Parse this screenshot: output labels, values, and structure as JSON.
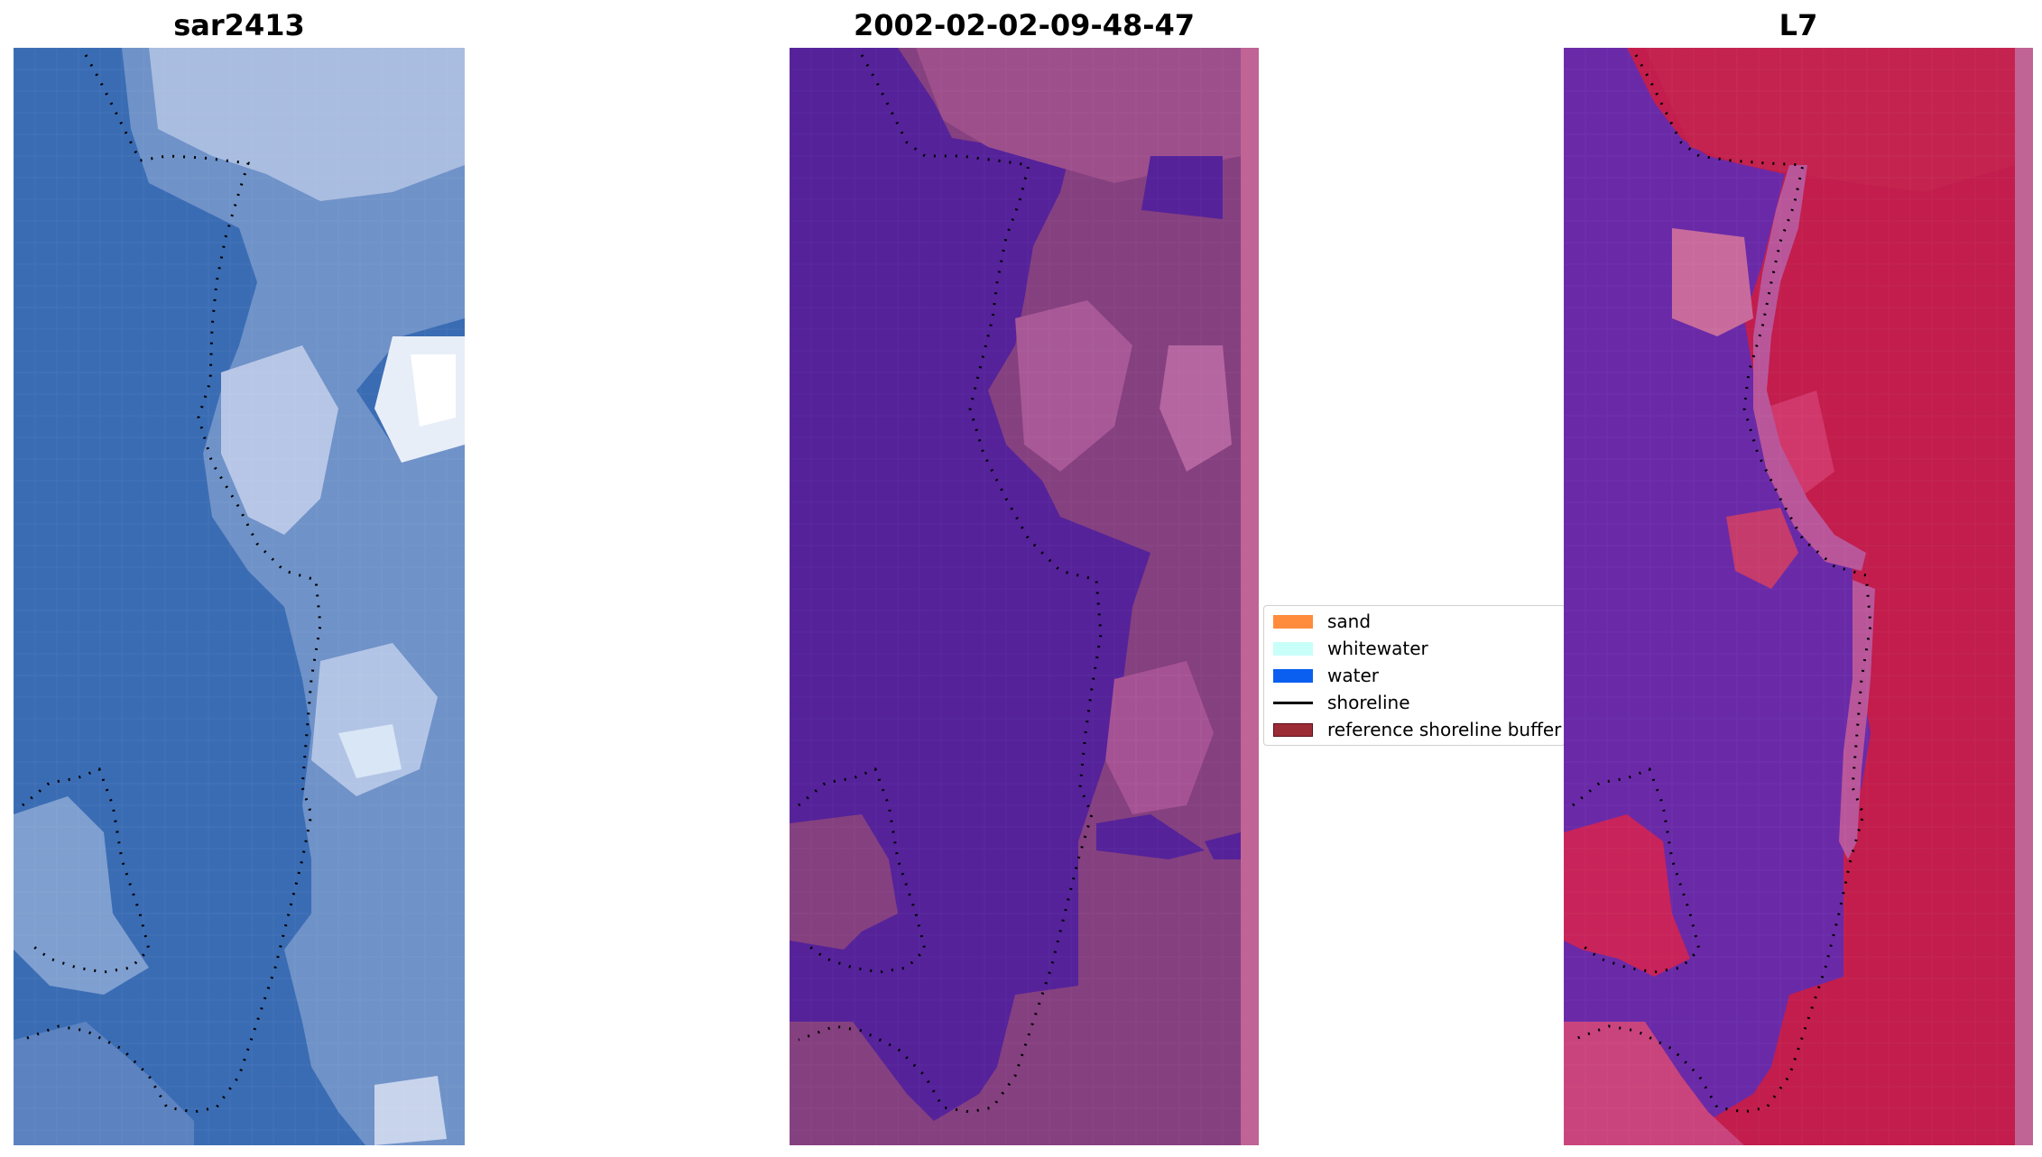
{
  "panels": [
    {
      "title": "sar2413"
    },
    {
      "title": "2002-02-02-09-48-47"
    },
    {
      "title": "L7"
    }
  ],
  "legend": {
    "items": [
      {
        "label": "sand",
        "color": "#ff8c3c",
        "kind": "patch"
      },
      {
        "label": "whitewater",
        "color": "#c8fff8",
        "kind": "patch"
      },
      {
        "label": "water",
        "color": "#0a5ff0",
        "kind": "patch"
      },
      {
        "label": "shoreline",
        "color": "#000000",
        "kind": "line"
      },
      {
        "label": "reference shoreline buffer",
        "color": "#9b2c36",
        "kind": "patch"
      }
    ]
  },
  "colors": {
    "rgb_water": "#3a6cb4",
    "rgb_surf": "#c8d4ec",
    "class_water": "#55229a",
    "class_land": "#85407f",
    "class_land_light": "#b565a0",
    "index_water": "#6a2aa8",
    "index_land": "#c21d4c",
    "index_land_light": "#c86b9c"
  }
}
